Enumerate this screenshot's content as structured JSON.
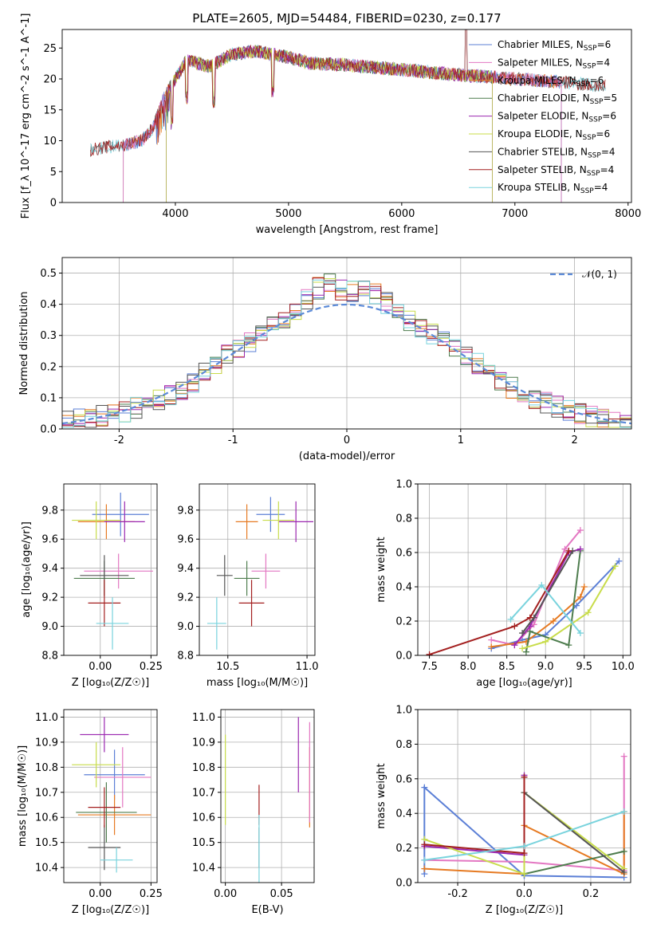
{
  "figure_title": "PLATE=2605, MJD=54484, FIBERID=0230, z=0.177",
  "colors": {
    "Chabrier MILES": "#5b7fd6",
    "Salpeter MILES": "#e377c2",
    "Kroupa MILES": "#e67a22",
    "Chabrier ELODIE": "#4e7d4e",
    "Salpeter ELODIE": "#9b27b0",
    "Kroupa ELODIE": "#c8dc4a",
    "Chabrier STELIB": "#555555",
    "Salpeter STELIB": "#a31f1f",
    "Kroupa STELIB": "#79d3dd"
  },
  "chart_data": [
    {
      "type": "line",
      "title": "PLATE=2605, MJD=54484, FIBERID=0230, z=0.177",
      "xlabel": "wavelength [Angstrom, rest frame]",
      "ylabel": "Flux [f_λ 10^-17 erg cm^-2 s^-1 A^-1]",
      "xlim": [
        3000,
        8030
      ],
      "ylim": [
        0,
        28
      ],
      "xticks": [
        4000,
        5000,
        6000,
        7000,
        8000
      ],
      "yticks": [
        0,
        5,
        10,
        15,
        20,
        25
      ],
      "grid": false,
      "legend_position": "top-right",
      "legend": [
        {
          "text": "Chabrier MILES, N",
          "sub": "SSP",
          "tail": "=6"
        },
        {
          "text": "Salpeter MILES, N",
          "sub": "SSP",
          "tail": "=4"
        },
        {
          "text": "Kroupa MILES, N",
          "sub": "SSP",
          "tail": "=6"
        },
        {
          "text": "Chabrier ELODIE, N",
          "sub": "SSP",
          "tail": "=5"
        },
        {
          "text": "Salpeter ELODIE, N",
          "sub": "SSP",
          "tail": "=6"
        },
        {
          "text": "Kroupa ELODIE, N",
          "sub": "SSP",
          "tail": "=6"
        },
        {
          "text": "Chabrier STELIB, N",
          "sub": "SSP",
          "tail": "=4"
        },
        {
          "text": "Salpeter STELIB, N",
          "sub": "SSP",
          "tail": "=4"
        },
        {
          "text": "Kroupa STELIB, N",
          "sub": "SSP",
          "tail": "=4"
        }
      ],
      "spectrum_envelope": {
        "x": [
          3250,
          3400,
          3550,
          3700,
          3800,
          3900,
          4000,
          4100,
          4200,
          4300,
          4500,
          4700,
          5000,
          5200,
          5500,
          5800,
          6000,
          6300,
          6600,
          6800,
          7000,
          7400,
          7700
        ],
        "y": [
          8.5,
          9,
          9.3,
          10,
          12,
          17,
          20,
          23,
          22.5,
          22,
          24,
          24.5,
          23.5,
          22.5,
          22.3,
          21.8,
          21.5,
          21,
          20.5,
          20.3,
          20,
          19.5,
          19
        ]
      },
      "series_wavelength_ranges": [
        {
          "name": "Chabrier MILES",
          "x": [
            3540,
            7410
          ]
        },
        {
          "name": "Salpeter MILES",
          "x": [
            3540,
            7410
          ]
        },
        {
          "name": "Kroupa MILES",
          "x": [
            3540,
            7410
          ]
        },
        {
          "name": "Chabrier ELODIE",
          "x": [
            3920,
            6800
          ]
        },
        {
          "name": "Salpeter ELODIE",
          "x": [
            3920,
            6800
          ]
        },
        {
          "name": "Kroupa ELODIE",
          "x": [
            3920,
            6800
          ]
        },
        {
          "name": "Chabrier STELIB",
          "x": [
            3250,
            7800
          ]
        },
        {
          "name": "Salpeter STELIB",
          "x": [
            3250,
            7800
          ]
        },
        {
          "name": "Kroupa STELIB",
          "x": [
            3250,
            7800
          ]
        }
      ]
    },
    {
      "type": "line",
      "xlabel": "(data-model)/error",
      "ylabel": "Normed distribution",
      "xlim": [
        -2.5,
        2.5
      ],
      "ylim": [
        0,
        0.55
      ],
      "xticks": [
        -2,
        -1,
        0,
        1,
        2
      ],
      "yticks": [
        0.0,
        0.1,
        0.2,
        0.3,
        0.4,
        0.5
      ],
      "grid": true,
      "legend_position": "top-right",
      "legend": [
        "𝒩(0, 1)"
      ],
      "gaussian": {
        "name": "𝒩(0, 1)",
        "mean": 0,
        "sigma": 1
      },
      "bin_width": 0.1,
      "histogram_profile": {
        "x": [
          -2.5,
          -2.0,
          -1.5,
          -1.0,
          -0.5,
          -0.2,
          0.0,
          0.2,
          0.5,
          1.0,
          1.5,
          2.0,
          2.5
        ],
        "y": [
          0.02,
          0.05,
          0.11,
          0.25,
          0.36,
          0.47,
          0.44,
          0.45,
          0.36,
          0.25,
          0.12,
          0.05,
          0.02
        ]
      }
    },
    {
      "type": "scatter",
      "xlabel": "Z [log₁₀(Z/Z☉)]",
      "ylabel": "age  [log₁₀(age/yr)]",
      "xlim": [
        -0.18,
        0.28
      ],
      "ylim": [
        8.8,
        9.98
      ],
      "xticks": [
        0.0,
        0.25
      ],
      "xtick_labels": [
        "0.00",
        "0.25"
      ],
      "yticks": [
        8.8,
        9.0,
        9.2,
        9.4,
        9.6,
        9.8
      ],
      "grid": true,
      "errorbars": [
        {
          "name": "Chabrier MILES",
          "x": 0.1,
          "xerr": 0.14,
          "y": 9.77,
          "yerr": 0.15
        },
        {
          "name": "Salpeter MILES",
          "x": 0.09,
          "xerr": 0.17,
          "y": 9.38,
          "yerr": 0.12
        },
        {
          "name": "Kroupa MILES",
          "x": 0.03,
          "xerr": 0.14,
          "y": 9.72,
          "yerr": 0.12
        },
        {
          "name": "Chabrier ELODIE",
          "x": 0.02,
          "xerr": 0.15,
          "y": 9.33,
          "yerr": 0.12
        },
        {
          "name": "Salpeter ELODIE",
          "x": 0.12,
          "xerr": 0.1,
          "y": 9.72,
          "yerr": 0.14
        },
        {
          "name": "Kroupa ELODIE",
          "x": -0.02,
          "xerr": 0.12,
          "y": 9.73,
          "yerr": 0.13
        },
        {
          "name": "Chabrier STELIB",
          "x": 0.02,
          "xerr": 0.12,
          "y": 9.35,
          "yerr": 0.14
        },
        {
          "name": "Salpeter STELIB",
          "x": 0.02,
          "xerr": 0.08,
          "y": 9.16,
          "yerr": 0.16
        },
        {
          "name": "Kroupa STELIB",
          "x": 0.06,
          "xerr": 0.08,
          "y": 9.02,
          "yerr": 0.18
        }
      ]
    },
    {
      "type": "scatter",
      "xlabel": "mass [log₁₀(M/M☉)]",
      "ylabel": "",
      "xlim": [
        10.32,
        11.05
      ],
      "ylim": [
        8.8,
        9.98
      ],
      "xticks": [
        10.5,
        11.0
      ],
      "xtick_labels": [
        "10.5",
        "11.0"
      ],
      "yticks": [
        8.8,
        9.0,
        9.2,
        9.4,
        9.6,
        9.8
      ],
      "grid": true,
      "errorbars": [
        {
          "name": "Chabrier MILES",
          "x": 10.77,
          "xerr": 0.09,
          "y": 9.77,
          "yerr": 0.12
        },
        {
          "name": "Salpeter MILES",
          "x": 10.74,
          "xerr": 0.09,
          "y": 9.38,
          "yerr": 0.12
        },
        {
          "name": "Kroupa MILES",
          "x": 10.62,
          "xerr": 0.07,
          "y": 9.72,
          "yerr": 0.12
        },
        {
          "name": "Chabrier ELODIE",
          "x": 10.62,
          "xerr": 0.08,
          "y": 9.33,
          "yerr": 0.12
        },
        {
          "name": "Salpeter ELODIE",
          "x": 10.93,
          "xerr": 0.11,
          "y": 9.72,
          "yerr": 0.14
        },
        {
          "name": "Kroupa ELODIE",
          "x": 10.82,
          "xerr": 0.1,
          "y": 9.73,
          "yerr": 0.13
        },
        {
          "name": "Chabrier STELIB",
          "x": 10.48,
          "xerr": 0.05,
          "y": 9.35,
          "yerr": 0.14
        },
        {
          "name": "Salpeter STELIB",
          "x": 10.65,
          "xerr": 0.08,
          "y": 9.16,
          "yerr": 0.16
        },
        {
          "name": "Kroupa STELIB",
          "x": 10.43,
          "xerr": 0.06,
          "y": 9.02,
          "yerr": 0.18
        }
      ]
    },
    {
      "type": "line",
      "xlabel": "age  [log₁₀(age/yr)]",
      "ylabel": "mass weight",
      "xlim": [
        7.35,
        10.1
      ],
      "ylim": [
        0,
        1.0
      ],
      "xticks": [
        7.5,
        8.0,
        8.5,
        9.0,
        9.5,
        10.0
      ],
      "yticks": [
        0.0,
        0.2,
        0.4,
        0.6,
        0.8,
        1.0
      ],
      "grid": true,
      "series": [
        {
          "name": "Chabrier MILES",
          "x": [
            8.3,
            8.7,
            9.0,
            9.4,
            9.95
          ],
          "y": [
            0.04,
            0.09,
            0.12,
            0.29,
            0.55
          ]
        },
        {
          "name": "Salpeter MILES",
          "x": [
            8.3,
            8.6,
            8.85,
            9.25,
            9.45
          ],
          "y": [
            0.09,
            0.06,
            0.18,
            0.62,
            0.73
          ]
        },
        {
          "name": "Kroupa MILES",
          "x": [
            8.3,
            8.75,
            9.1,
            9.45,
            9.5
          ],
          "y": [
            0.05,
            0.08,
            0.2,
            0.34,
            0.4
          ]
        },
        {
          "name": "Chabrier ELODIE",
          "x": [
            8.75,
            8.8,
            9.3,
            9.45
          ],
          "y": [
            0.02,
            0.14,
            0.06,
            0.61
          ]
        },
        {
          "name": "Salpeter ELODIE",
          "x": [
            8.6,
            8.8,
            9.3,
            9.45
          ],
          "y": [
            0.06,
            0.17,
            0.6,
            0.62
          ]
        },
        {
          "name": "Kroupa ELODIE",
          "x": [
            8.7,
            9.0,
            9.55,
            9.9
          ],
          "y": [
            0.04,
            0.08,
            0.25,
            0.52
          ]
        },
        {
          "name": "Chabrier STELIB",
          "x": [
            8.7,
            8.85,
            9.35
          ],
          "y": [
            0.13,
            0.22,
            0.61
          ]
        },
        {
          "name": "Salpeter STELIB",
          "x": [
            7.5,
            8.6,
            8.8,
            9.3
          ],
          "y": [
            0.005,
            0.17,
            0.22,
            0.61
          ]
        },
        {
          "name": "Kroupa STELIB",
          "x": [
            8.55,
            8.95,
            9.45
          ],
          "y": [
            0.21,
            0.41,
            0.13
          ]
        }
      ]
    },
    {
      "type": "scatter",
      "xlabel": "Z [log₁₀(Z/Z☉)]",
      "ylabel": "mass [log₁₀(M/M☉)]",
      "xlim": [
        -0.18,
        0.28
      ],
      "ylim": [
        10.34,
        11.03
      ],
      "xticks": [
        0.0,
        0.25
      ],
      "xtick_labels": [
        "0.00",
        "0.25"
      ],
      "yticks": [
        10.4,
        10.5,
        10.6,
        10.7,
        10.8,
        10.9,
        11.0
      ],
      "grid": true,
      "errorbars": [
        {
          "name": "Chabrier MILES",
          "x": 0.07,
          "xerr": 0.15,
          "y": 10.77,
          "yerr": 0.1
        },
        {
          "name": "Salpeter MILES",
          "x": 0.11,
          "xerr": 0.14,
          "y": 10.76,
          "yerr": 0.12
        },
        {
          "name": "Kroupa MILES",
          "x": 0.07,
          "xerr": 0.18,
          "y": 10.61,
          "yerr": 0.08
        },
        {
          "name": "Chabrier ELODIE",
          "x": 0.03,
          "xerr": 0.15,
          "y": 10.62,
          "yerr": 0.12
        },
        {
          "name": "Salpeter ELODIE",
          "x": 0.02,
          "xerr": 0.12,
          "y": 10.93,
          "yerr": 0.07
        },
        {
          "name": "Kroupa ELODIE",
          "x": -0.02,
          "xerr": 0.12,
          "y": 10.81,
          "yerr": 0.09
        },
        {
          "name": "Chabrier STELIB",
          "x": 0.02,
          "xerr": 0.08,
          "y": 10.48,
          "yerr": 0.09
        },
        {
          "name": "Salpeter STELIB",
          "x": 0.02,
          "xerr": 0.08,
          "y": 10.64,
          "yerr": 0.08
        },
        {
          "name": "Kroupa STELIB",
          "x": 0.08,
          "xerr": 0.08,
          "y": 10.43,
          "yerr": 0.05
        }
      ]
    },
    {
      "type": "scatter",
      "xlabel": "E(B-V)",
      "ylabel": "",
      "xlim": [
        -0.004,
        0.079
      ],
      "ylim": [
        10.34,
        11.03
      ],
      "xticks": [
        0.0,
        0.05
      ],
      "xtick_labels": [
        "0.00",
        "0.05"
      ],
      "yticks": [
        10.4,
        10.5,
        10.6,
        10.7,
        10.8,
        10.9,
        11.0
      ],
      "grid": true,
      "errorbars": [
        {
          "name": "Kroupa ELODIE",
          "x": 0.0,
          "xerr": 0,
          "y": 10.75,
          "yerr": 0.18
        },
        {
          "name": "Salpeter STELIB",
          "x": 0.03,
          "xerr": 0,
          "y": 10.65,
          "yerr": 0.08
        },
        {
          "name": "Chabrier STELIB",
          "x": 0.03,
          "xerr": 0,
          "y": 10.48,
          "yerr": 0.08
        },
        {
          "name": "Kroupa STELIB",
          "x": 0.03,
          "xerr": 0,
          "y": 10.47,
          "yerr": 0.14
        },
        {
          "name": "Salpeter ELODIE",
          "x": 0.065,
          "xerr": 0,
          "y": 10.85,
          "yerr": 0.15
        },
        {
          "name": "Kroupa MILES",
          "x": 0.075,
          "xerr": 0,
          "y": 10.72,
          "yerr": 0.16
        },
        {
          "name": "Salpeter MILES",
          "x": 0.075,
          "xerr": 0,
          "y": 10.78,
          "yerr": 0.2
        }
      ]
    },
    {
      "type": "line",
      "xlabel": "Z [log₁₀(Z/Z☉)]",
      "ylabel": "mass weight",
      "xlim": [
        -0.32,
        0.32
      ],
      "ylim": [
        0,
        1.0
      ],
      "xticks": [
        -0.2,
        0.0,
        0.2
      ],
      "yticks": [
        0.0,
        0.2,
        0.4,
        0.6,
        0.8,
        1.0
      ],
      "grid": true,
      "series": [
        {
          "name": "Chabrier MILES",
          "x": [
            -0.3,
            -0.3,
            0.0,
            0.0,
            0.3
          ],
          "y": [
            0.05,
            0.55,
            0.04,
            0.04,
            0.03
          ]
        },
        {
          "name": "Salpeter MILES",
          "x": [
            -0.3,
            0.0,
            0.3,
            0.3
          ],
          "y": [
            0.13,
            0.12,
            0.07,
            0.73
          ]
        },
        {
          "name": "Kroupa MILES",
          "x": [
            -0.3,
            0.0,
            0.0,
            0.3,
            0.3
          ],
          "y": [
            0.08,
            0.05,
            0.33,
            0.05,
            0.41
          ]
        },
        {
          "name": "Chabrier ELODIE",
          "x": [
            0.0,
            0.0,
            0.3
          ],
          "y": [
            0.61,
            0.05,
            0.18
          ]
        },
        {
          "name": "Salpeter ELODIE",
          "x": [
            -0.3,
            0.0,
            0.0
          ],
          "y": [
            0.21,
            0.16,
            0.62
          ]
        },
        {
          "name": "Kroupa ELODIE",
          "x": [
            -0.3,
            0.0,
            0.0,
            0.3
          ],
          "y": [
            0.25,
            0.05,
            0.52,
            0.08
          ]
        },
        {
          "name": "Chabrier STELIB",
          "x": [
            0.0,
            0.0,
            0.3
          ],
          "y": [
            0.61,
            0.52,
            0.06
          ]
        },
        {
          "name": "Salpeter STELIB",
          "x": [
            -0.3,
            0.0,
            0.0
          ],
          "y": [
            0.22,
            0.17,
            0.61
          ]
        },
        {
          "name": "Kroupa STELIB",
          "x": [
            -0.3,
            0.0,
            0.3
          ],
          "y": [
            0.13,
            0.21,
            0.41
          ]
        }
      ]
    }
  ]
}
